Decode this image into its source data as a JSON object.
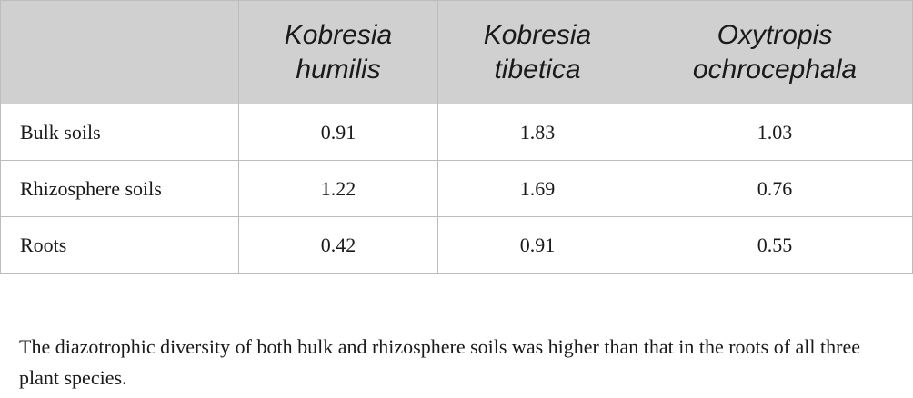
{
  "table": {
    "columns": [
      {
        "line1": "",
        "line2": ""
      },
      {
        "line1": "Kobresia",
        "line2": "humilis"
      },
      {
        "line1": "Kobresia",
        "line2": "tibetica"
      },
      {
        "line1": "Oxytropis",
        "line2": "ochrocephala"
      }
    ],
    "rows": [
      {
        "label": "Bulk soils",
        "values": [
          "0.91",
          "1.83",
          "1.03"
        ]
      },
      {
        "label": "Rhizosphere soils",
        "values": [
          "1.22",
          "1.69",
          "0.76"
        ]
      },
      {
        "label": "Roots",
        "values": [
          "0.42",
          "0.91",
          "0.55"
        ]
      }
    ]
  },
  "footnote": "The diazotrophic diversity of both bulk and rhizosphere soils was higher than that in the roots of all three plant species."
}
